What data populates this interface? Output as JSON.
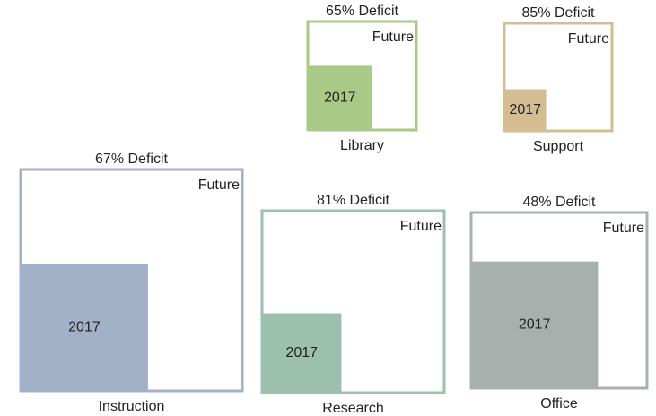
{
  "chart_data": {
    "type": "nested-square",
    "categories": [
      "Library",
      "Support",
      "Instruction",
      "Research",
      "Office"
    ],
    "values": [
      65,
      85,
      67,
      81,
      48
    ],
    "value_labels": [
      "65% Deficit",
      "85% Deficit",
      "67% Deficit",
      "81% Deficit",
      "48% Deficit"
    ],
    "outer_label": "Future",
    "inner_label": "2017",
    "colors": [
      "#a9c986",
      "#d4bd93",
      "#a3b1c8",
      "#9dbfad",
      "#a8b0ae"
    ]
  }
}
